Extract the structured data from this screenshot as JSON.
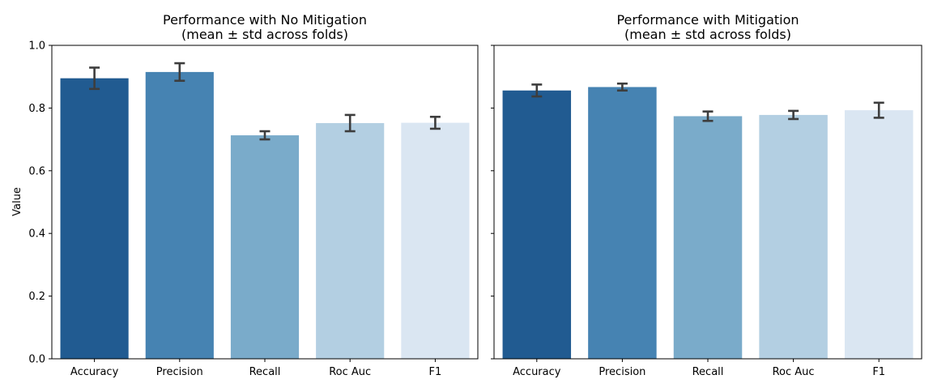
{
  "chart_data": [
    {
      "type": "bar",
      "title": "Performance with No Mitigation",
      "subtitle": "(mean ± std across folds)",
      "xlabel": "",
      "ylabel": "Value",
      "ylim": [
        0,
        1.0
      ],
      "yticks": [
        "0.0",
        "0.2",
        "0.4",
        "0.6",
        "0.8",
        "1.0"
      ],
      "grid": false,
      "categories": [
        "Accuracy",
        "Precision",
        "Recall",
        "Roc Auc",
        "F1"
      ],
      "values": [
        0.895,
        0.915,
        0.713,
        0.752,
        0.753
      ],
      "errors": [
        0.034,
        0.028,
        0.013,
        0.026,
        0.019
      ],
      "colors": [
        "#215b91",
        "#4683b2",
        "#7aabca",
        "#b3cfe2",
        "#dae6f2"
      ],
      "errorbar_color": "#3d3d3d"
    },
    {
      "type": "bar",
      "title": "Performance with Mitigation",
      "subtitle": "(mean ± std across folds)",
      "xlabel": "",
      "ylabel": "",
      "ylim": [
        0,
        1.0
      ],
      "yticks": [],
      "grid": false,
      "categories": [
        "Accuracy",
        "Precision",
        "Recall",
        "Roc Auc",
        "F1"
      ],
      "values": [
        0.856,
        0.867,
        0.774,
        0.778,
        0.793
      ],
      "errors": [
        0.019,
        0.011,
        0.015,
        0.013,
        0.024
      ],
      "colors": [
        "#215b91",
        "#4683b2",
        "#7aabca",
        "#b3cfe2",
        "#dae6f2"
      ],
      "errorbar_color": "#3d3d3d"
    }
  ]
}
